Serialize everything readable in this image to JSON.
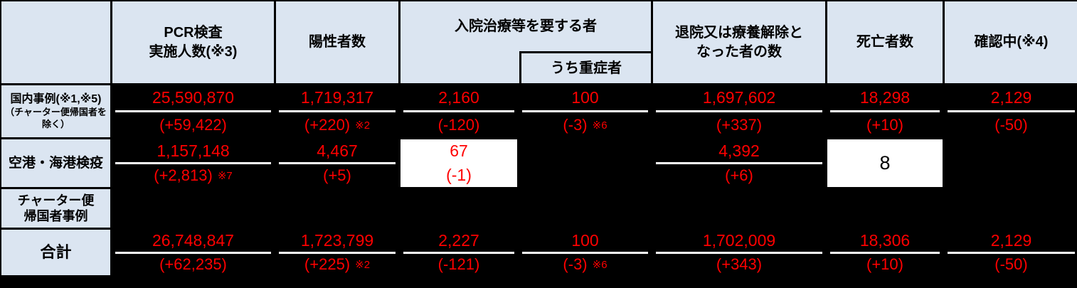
{
  "colors": {
    "background": "#000000",
    "header_bg": "#dbe5f1",
    "value_text": "#ff0000",
    "header_text": "#000000",
    "separator_line": "#ffffff",
    "callout_box_bg": "#ffffff"
  },
  "header": {
    "corner": "",
    "pcr": "PCR検査\n実施人数(※3)",
    "positive": "陽性者数",
    "hospitalized_group": "入院治療等を要する者",
    "severe_sub": "うち重症者",
    "discharged": "退院又は療養解除と\nなった者の数",
    "deaths": "死亡者数",
    "confirming": "確認中(※4)"
  },
  "rows": [
    {
      "label": "国内事例(※1,※5)",
      "label_sub": "（チャーター便帰国者を除く）",
      "pcr": {
        "value": "25,590,870",
        "delta": "(+59,422)"
      },
      "positive": {
        "value": "1,719,317",
        "delta": "(+220)",
        "note": "※2"
      },
      "hospitalized": {
        "value": "2,160",
        "delta": "(-120)"
      },
      "severe": {
        "value": "100",
        "delta": "(-3)",
        "note": "※6"
      },
      "discharged": {
        "value": "1,697,602",
        "delta": "(+337)"
      },
      "deaths": {
        "value": "18,298",
        "delta": "(+10)"
      },
      "confirming": {
        "value": "2,129",
        "delta": "(-50)"
      }
    },
    {
      "label": "空港・海港検疫",
      "pcr": {
        "value": "1,157,148",
        "delta": "(+2,813)",
        "note": "※7"
      },
      "positive": {
        "value": "4,467",
        "delta": "(+5)"
      },
      "hospitalized": {
        "value": "67",
        "delta": "(-1)"
      },
      "discharged": {
        "value": "4,392",
        "delta": "(+6)"
      },
      "deaths": {
        "value": "8"
      }
    },
    {
      "label": "チャーター便\n帰国者事例"
    },
    {
      "label": "合計",
      "pcr": {
        "value": "26,748,847",
        "delta": "(+62,235)"
      },
      "positive": {
        "value": "1,723,799",
        "delta": "(+225)",
        "note": "※2"
      },
      "hospitalized": {
        "value": "2,227",
        "delta": "(-121)"
      },
      "severe": {
        "value": "100",
        "delta": "(-3)",
        "note": "※6"
      },
      "discharged": {
        "value": "1,702,009",
        "delta": "(+343)"
      },
      "deaths": {
        "value": "18,306",
        "delta": "(+10)"
      },
      "confirming": {
        "value": "2,129",
        "delta": "(-50)"
      }
    }
  ],
  "chart_data": {
    "type": "table",
    "columns": [
      "",
      "PCR検査実施人数(※3)",
      "陽性者数",
      "入院治療等を要する者",
      "うち重症者",
      "退院又は療養解除となった者の数",
      "死亡者数",
      "確認中(※4)"
    ],
    "rows": [
      [
        "国内事例(※1,※5)（チャーター便帰国者を除く）",
        "25,590,870 (+59,422)",
        "1,719,317 (+220) ※2",
        "2,160 (-120)",
        "100 (-3) ※6",
        "1,697,602 (+337)",
        "18,298 (+10)",
        "2,129 (-50)"
      ],
      [
        "空港・海港検疫",
        "1,157,148 (+2,813)※7",
        "4,467 (+5)",
        "67 (-1)",
        "",
        "4,392 (+6)",
        "8",
        ""
      ],
      [
        "チャーター便帰国者事例",
        "",
        "",
        "",
        "",
        "",
        "",
        ""
      ],
      [
        "合計",
        "26,748,847 (+62,235)",
        "1,723,799 (+225) ※2",
        "2,227 (-121)",
        "100 (-3) ※6",
        "1,702,009 (+343)",
        "18,306 (+10)",
        "2,129 (-50)"
      ]
    ]
  }
}
